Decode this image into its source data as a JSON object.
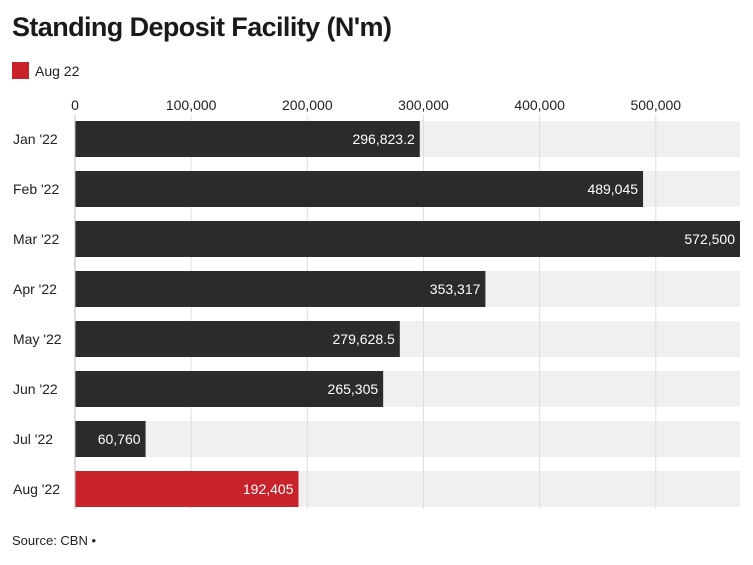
{
  "chart_data": {
    "type": "bar",
    "orientation": "horizontal",
    "title": "Standing Deposit Facility (N'm)",
    "legend": [
      {
        "label": "Aug 22",
        "color": "#c8232a"
      }
    ],
    "categories": [
      "Jan '22",
      "Feb '22",
      "Mar '22",
      "Apr '22",
      "May '22",
      "Jun '22",
      "Jul '22",
      "Aug '22"
    ],
    "values": [
      296823.2,
      489045,
      572500,
      353317,
      279628.5,
      265305,
      60760,
      192405
    ],
    "value_labels": [
      "296,823.2",
      "489,045",
      "572,500",
      "353,317",
      "279,628.5",
      "265,305",
      "60,760",
      "192,405"
    ],
    "bar_colors": [
      "#2b2b2b",
      "#2b2b2b",
      "#2b2b2b",
      "#2b2b2b",
      "#2b2b2b",
      "#2b2b2b",
      "#2b2b2b",
      "#c8232a"
    ],
    "track_color": "#f1f0ef",
    "grid_color": "#dedede",
    "xticks": [
      0,
      100000,
      200000,
      300000,
      400000,
      500000
    ],
    "xtick_labels": [
      "0",
      "100,000",
      "200,000",
      "300,000",
      "400,000",
      "500,000"
    ],
    "xlim": [
      0,
      572500
    ],
    "axis_position": "top",
    "xlabel": "",
    "ylabel": ""
  },
  "source": "Source: CBN •"
}
